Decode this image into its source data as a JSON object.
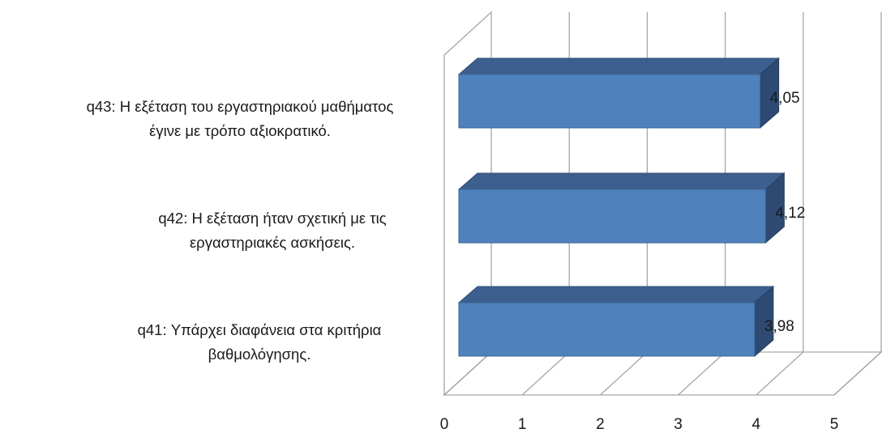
{
  "chart_data": {
    "type": "bar",
    "orientation": "horizontal",
    "style": "3d",
    "categories": [
      [
        "q43: Η εξέταση του εργαστηριακού μαθήματος",
        "έγινε με τρόπο αξιοκρατικό."
      ],
      [
        "q42: Η εξέταση ήταν σχετική με τις",
        "εργαστηριακές ασκήσεις."
      ],
      [
        "q41: Υπάρχει διαφάνεια στα κριτήρια",
        "βαθμολόγησης."
      ]
    ],
    "values": [
      4.05,
      4.12,
      3.98
    ],
    "data_labels": [
      "4,05",
      "4,12",
      "3,98"
    ],
    "xlim": [
      0,
      5
    ],
    "xticks": [
      "0",
      "1",
      "2",
      "3",
      "4",
      "5"
    ],
    "grid": true,
    "legend": "none",
    "bar_color": "#4f81bd",
    "bar_top_color": "#3c5f8f",
    "bar_side_color": "#2e4a72",
    "grid_color": "#a6a6a6"
  }
}
